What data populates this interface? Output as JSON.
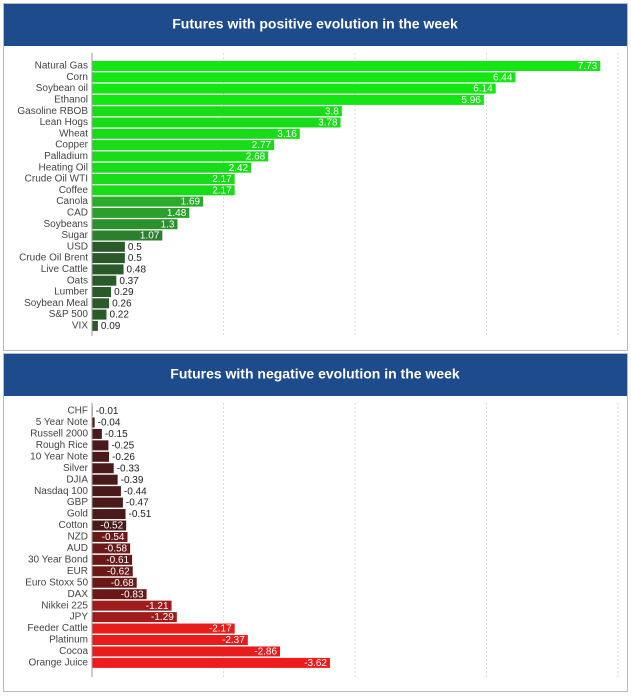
{
  "chart_data": [
    {
      "type": "bar",
      "orientation": "horizontal",
      "title": "Futures with positive evolution in the week",
      "categories": [
        "Natural Gas",
        "Corn",
        "Soybean oil",
        "Ethanol",
        "Gasoline RBOB",
        "Lean Hogs",
        "Wheat",
        "Copper",
        "Palladium",
        "Heating Oil",
        "Crude Oil WTI",
        "Coffee",
        "Canola",
        "CAD",
        "Soybeans",
        "Sugar",
        "USD",
        "Crude Oil Brent",
        "Live Cattle",
        "Oats",
        "Lumber",
        "Soybean Meal",
        "S&P 500",
        "VIX"
      ],
      "values": [
        7.73,
        6.44,
        6.14,
        5.96,
        3.8,
        3.78,
        3.16,
        2.77,
        2.68,
        2.42,
        2.17,
        2.17,
        1.69,
        1.48,
        1.3,
        1.07,
        0.5,
        0.5,
        0.48,
        0.37,
        0.29,
        0.26,
        0.22,
        0.09
      ],
      "colors": [
        "#14e614",
        "#14e614",
        "#14e614",
        "#14e614",
        "#18dc18",
        "#18dc18",
        "#18dc18",
        "#18dc18",
        "#18dc18",
        "#18dc18",
        "#18dc18",
        "#18dc18",
        "#2caa2c",
        "#2c9e2c",
        "#2c902c",
        "#2c802c",
        "#2a5a2a",
        "#2a5a2a",
        "#2a5a2a",
        "#2a5a2a",
        "#2a5a2a",
        "#2a5a2a",
        "#2a5a2a",
        "#2a5a2a"
      ],
      "xlim": [
        0,
        8
      ],
      "xticks": [
        0,
        2,
        4,
        6,
        8
      ],
      "grid": true
    },
    {
      "type": "bar",
      "orientation": "horizontal",
      "title": "Futures with negative evolution in the week",
      "categories": [
        "CHF",
        "5 Year Note",
        "Russell 2000",
        "Rough Rice",
        "10 Year Note",
        "Silver",
        "DJIA",
        "Nasdaq 100",
        "GBP",
        "Gold",
        "Cotton",
        "NZD",
        "AUD",
        "30 Year Bond",
        "EUR",
        "Euro Stoxx 50",
        "DAX",
        "Nikkei 225",
        "JPY",
        "Feeder Cattle",
        "Platinum",
        "Cocoa",
        "Orange Juice"
      ],
      "values": [
        -0.01,
        -0.04,
        -0.15,
        -0.25,
        -0.26,
        -0.33,
        -0.39,
        -0.44,
        -0.47,
        -0.51,
        -0.52,
        -0.54,
        -0.58,
        -0.61,
        -0.62,
        -0.68,
        -0.83,
        -1.21,
        -1.29,
        -2.17,
        -2.37,
        -2.86,
        -3.62
      ],
      "colors": [
        "#4a1a1a",
        "#4a1a1a",
        "#4a1a1a",
        "#4a1a1a",
        "#4a1a1a",
        "#4a1a1a",
        "#4a1a1a",
        "#4a1a1a",
        "#4a1a1a",
        "#4a1a1a",
        "#4a1a1a",
        "#6a1818",
        "#6a1818",
        "#6a1818",
        "#6a1818",
        "#6a1818",
        "#6a1818",
        "#9e1c1c",
        "#9e1c1c",
        "#e81c1c",
        "#e81c1c",
        "#e81c1c",
        "#ee1c1c"
      ],
      "xlim": [
        0,
        -8
      ],
      "xticks": [
        0,
        -2,
        -4,
        -6,
        -8
      ],
      "grid": true
    }
  ]
}
